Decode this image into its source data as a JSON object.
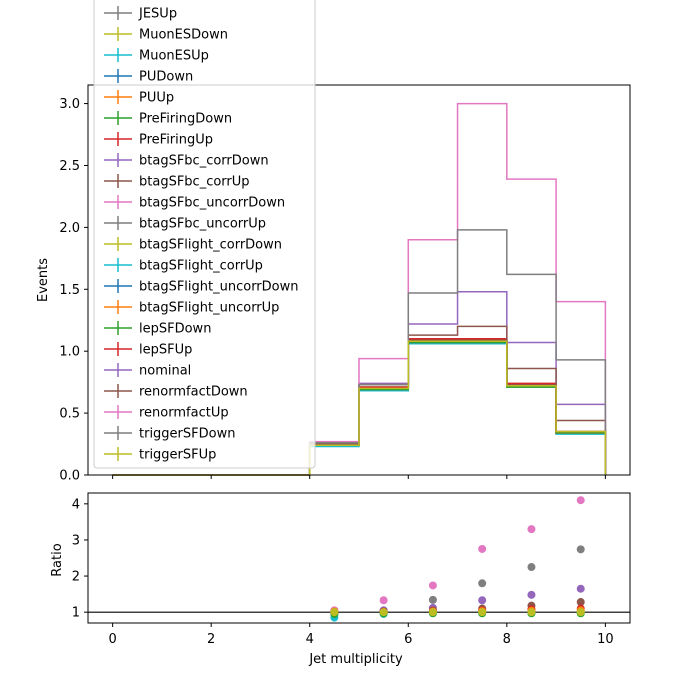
{
  "chart_data": [
    {
      "type": "line",
      "drawstyle": "steps",
      "xlabel": "",
      "ylabel": "Events",
      "xlim": [
        -0.5,
        10.5
      ],
      "ylim": [
        0,
        3.15
      ],
      "yticks": [
        0.0,
        0.5,
        1.0,
        1.5,
        2.0,
        2.5,
        3.0
      ],
      "ytick_labels": [
        "0.0",
        "0.5",
        "1.0",
        "1.5",
        "2.0",
        "2.5",
        "3.0"
      ],
      "xticks": [
        0,
        2,
        4,
        6,
        8,
        10
      ],
      "bin_edges": [
        0,
        1,
        2,
        3,
        4,
        5,
        6,
        7,
        8,
        9,
        10
      ],
      "grid": false,
      "legend_placement": "top-left",
      "series": [
        {
          "name": "JESUp",
          "color": "#7f7f7f",
          "values": [
            0,
            0,
            0,
            0,
            0.24,
            0.71,
            1.08,
            1.08,
            0.72,
            0.34
          ]
        },
        {
          "name": "MuonESDown",
          "color": "#bcbd22",
          "values": [
            0,
            0,
            0,
            0,
            0.24,
            0.7,
            1.08,
            1.08,
            0.72,
            0.34
          ]
        },
        {
          "name": "MuonESUp",
          "color": "#17becf",
          "values": [
            0,
            0,
            0,
            0,
            0.23,
            0.68,
            1.06,
            1.06,
            0.71,
            0.33
          ]
        },
        {
          "name": "PUDown",
          "color": "#1f77b4",
          "values": [
            0,
            0,
            0,
            0,
            0.24,
            0.69,
            1.07,
            1.07,
            0.72,
            0.34
          ]
        },
        {
          "name": "PUUp",
          "color": "#ff7f0e",
          "values": [
            0,
            0,
            0,
            0,
            0.25,
            0.71,
            1.09,
            1.09,
            0.73,
            0.35
          ]
        },
        {
          "name": "PreFiringDown",
          "color": "#2ca02c",
          "values": [
            0,
            0,
            0,
            0,
            0.24,
            0.7,
            1.08,
            1.08,
            0.72,
            0.34
          ]
        },
        {
          "name": "PreFiringUp",
          "color": "#d62728",
          "values": [
            0,
            0,
            0,
            0,
            0.24,
            0.7,
            1.08,
            1.08,
            0.72,
            0.34
          ]
        },
        {
          "name": "btagSFbc_corrDown",
          "color": "#9467bd",
          "values": [
            0,
            0,
            0,
            0,
            0.24,
            0.69,
            1.07,
            1.07,
            0.72,
            0.34
          ]
        },
        {
          "name": "btagSFbc_corrUp",
          "color": "#8c564b",
          "values": [
            0,
            0,
            0,
            0,
            0.25,
            0.71,
            1.09,
            1.09,
            0.73,
            0.35
          ]
        },
        {
          "name": "btagSFbc_uncorrDown",
          "color": "#e377c2",
          "values": [
            0,
            0,
            0,
            0,
            0.24,
            0.7,
            1.08,
            1.08,
            0.72,
            0.34
          ]
        },
        {
          "name": "btagSFbc_uncorrUp",
          "color": "#7f7f7f",
          "values": [
            0,
            0,
            0,
            0,
            0.24,
            0.7,
            1.08,
            1.08,
            0.72,
            0.34
          ]
        },
        {
          "name": "btagSFlight_corrDown",
          "color": "#bcbd22",
          "values": [
            0,
            0,
            0,
            0,
            0.24,
            0.7,
            1.08,
            1.08,
            0.72,
            0.34
          ]
        },
        {
          "name": "btagSFlight_corrUp",
          "color": "#17becf",
          "values": [
            0,
            0,
            0,
            0,
            0.24,
            0.7,
            1.08,
            1.08,
            0.72,
            0.34
          ]
        },
        {
          "name": "btagSFlight_uncorrDown",
          "color": "#1f77b4",
          "values": [
            0,
            0,
            0,
            0,
            0.24,
            0.7,
            1.08,
            1.08,
            0.72,
            0.34
          ]
        },
        {
          "name": "btagSFlight_uncorrUp",
          "color": "#ff7f0e",
          "values": [
            0,
            0,
            0,
            0,
            0.24,
            0.7,
            1.08,
            1.08,
            0.72,
            0.34
          ]
        },
        {
          "name": "lepSFDown",
          "color": "#2ca02c",
          "values": [
            0,
            0,
            0,
            0,
            0.24,
            0.69,
            1.07,
            1.07,
            0.71,
            0.34
          ]
        },
        {
          "name": "lepSFUp",
          "color": "#d62728",
          "values": [
            0,
            0,
            0,
            0,
            0.25,
            0.71,
            1.1,
            1.1,
            0.74,
            0.35
          ]
        },
        {
          "name": "nominal",
          "color": "#9467bd",
          "values": [
            0,
            0,
            0,
            0,
            0.25,
            0.74,
            1.22,
            1.48,
            1.07,
            0.57
          ]
        },
        {
          "name": "renormfactDown",
          "color": "#8c564b",
          "values": [
            0,
            0,
            0,
            0,
            0.25,
            0.73,
            1.13,
            1.2,
            0.86,
            0.44
          ]
        },
        {
          "name": "renormfactUp",
          "color": "#e377c2",
          "values": [
            0,
            0,
            0,
            0,
            0.27,
            0.94,
            1.9,
            3.0,
            2.39,
            1.4
          ]
        },
        {
          "name": "triggerSFDown",
          "color": "#7f7f7f",
          "values": [
            0,
            0,
            0,
            0,
            0.26,
            0.73,
            1.47,
            1.98,
            1.62,
            0.93
          ]
        },
        {
          "name": "triggerSFUp",
          "color": "#bcbd22",
          "values": [
            0,
            0,
            0,
            0,
            0.24,
            0.7,
            1.08,
            1.08,
            0.72,
            0.35
          ]
        }
      ]
    },
    {
      "type": "scatter",
      "xlabel": "Jet multiplicity",
      "ylabel": "Ratio",
      "xlim": [
        -0.5,
        10.5
      ],
      "ylim": [
        0.7,
        4.3
      ],
      "xticks": [
        0,
        2,
        4,
        6,
        8,
        10
      ],
      "xtick_labels": [
        "0",
        "2",
        "4",
        "6",
        "8",
        "10"
      ],
      "yticks": [
        1,
        2,
        3,
        4
      ],
      "ytick_labels": [
        "1",
        "2",
        "3",
        "4"
      ],
      "reference_line": 1,
      "grid": false,
      "x": [
        4.5,
        5.5,
        6.5,
        7.5,
        8.5,
        9.5
      ],
      "series": [
        {
          "name": "renormfactUp",
          "color": "#e377c2",
          "values": [
            1.05,
            1.33,
            1.74,
            2.75,
            3.3,
            4.1
          ]
        },
        {
          "name": "triggerSFDown",
          "color": "#7f7f7f",
          "values": [
            0.95,
            1.04,
            1.34,
            1.8,
            2.25,
            2.74
          ]
        },
        {
          "name": "nominal",
          "color": "#9467bd",
          "values": [
            1.0,
            1.05,
            1.12,
            1.33,
            1.48,
            1.65
          ]
        },
        {
          "name": "renormfactDown",
          "color": "#8c564b",
          "values": [
            0.98,
            1.02,
            1.05,
            1.1,
            1.18,
            1.28
          ]
        },
        {
          "name": "lepSFUp",
          "color": "#d62728",
          "values": [
            1.0,
            1.01,
            1.03,
            1.05,
            1.08,
            1.1
          ]
        },
        {
          "name": "PUUp",
          "color": "#ff7f0e",
          "values": [
            1.02,
            1.0,
            1.02,
            1.03,
            1.04,
            1.05
          ]
        },
        {
          "name": "MuonESUp",
          "color": "#17becf",
          "values": [
            0.85,
            0.95,
            0.98,
            0.98,
            0.98,
            0.98
          ]
        },
        {
          "name": "lepSFDown",
          "color": "#2ca02c",
          "values": [
            0.95,
            0.97,
            0.97,
            0.97,
            0.97,
            0.97
          ]
        },
        {
          "name": "triggerSFUp",
          "color": "#bcbd22",
          "values": [
            1.0,
            1.0,
            1.0,
            1.0,
            1.0,
            1.0
          ]
        }
      ]
    }
  ]
}
